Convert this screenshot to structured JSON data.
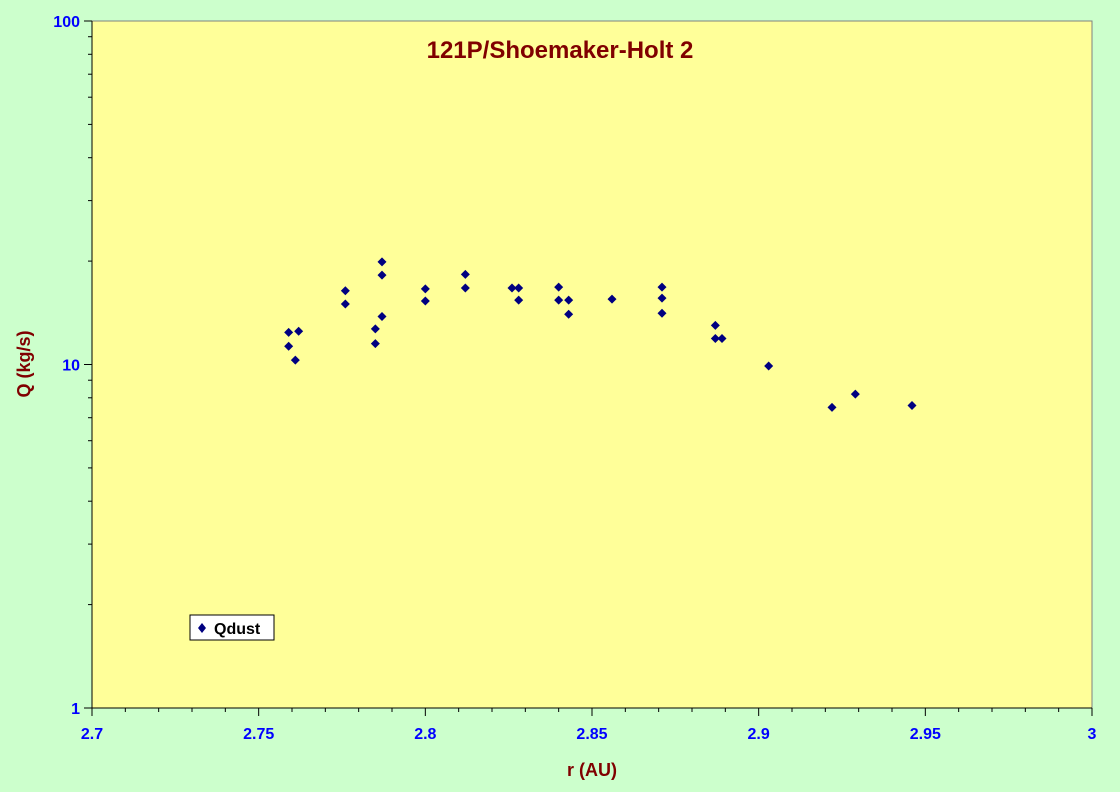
{
  "chart_data": {
    "type": "scatter",
    "title": "121P/Shoemaker-Holt 2",
    "xlabel": "r (AU)",
    "ylabel": "Q (kg/s)",
    "xlim": [
      2.7,
      3.0
    ],
    "ylim": [
      1,
      100
    ],
    "y_scale": "log",
    "x_ticks": [
      "2.7",
      "2.75",
      "2.8",
      "2.85",
      "2.9",
      "2.95",
      "3"
    ],
    "y_ticks": [
      "1",
      "10",
      "100"
    ],
    "grid": false,
    "legend_position": "bottom-left",
    "colors": {
      "background": "#ccffcc",
      "plot_area": "#ffff99",
      "marker": "#000080",
      "title": "#800000",
      "tick_labels": "#0000ff"
    },
    "series": [
      {
        "name": "Qdust",
        "marker": "diamond",
        "points": [
          {
            "x": 2.759,
            "y": 12.4
          },
          {
            "x": 2.759,
            "y": 11.3
          },
          {
            "x": 2.761,
            "y": 10.3
          },
          {
            "x": 2.762,
            "y": 12.5
          },
          {
            "x": 2.776,
            "y": 16.4
          },
          {
            "x": 2.776,
            "y": 15.0
          },
          {
            "x": 2.785,
            "y": 12.7
          },
          {
            "x": 2.785,
            "y": 11.5
          },
          {
            "x": 2.787,
            "y": 19.9
          },
          {
            "x": 2.787,
            "y": 18.2
          },
          {
            "x": 2.787,
            "y": 13.8
          },
          {
            "x": 2.8,
            "y": 16.6
          },
          {
            "x": 2.8,
            "y": 15.3
          },
          {
            "x": 2.812,
            "y": 18.3
          },
          {
            "x": 2.812,
            "y": 16.7
          },
          {
            "x": 2.826,
            "y": 16.7
          },
          {
            "x": 2.828,
            "y": 16.7
          },
          {
            "x": 2.828,
            "y": 15.4
          },
          {
            "x": 2.84,
            "y": 16.8
          },
          {
            "x": 2.84,
            "y": 15.4
          },
          {
            "x": 2.843,
            "y": 15.4
          },
          {
            "x": 2.843,
            "y": 14.0
          },
          {
            "x": 2.856,
            "y": 15.5
          },
          {
            "x": 2.871,
            "y": 16.8
          },
          {
            "x": 2.871,
            "y": 15.6
          },
          {
            "x": 2.871,
            "y": 14.1
          },
          {
            "x": 2.887,
            "y": 13.0
          },
          {
            "x": 2.887,
            "y": 11.9
          },
          {
            "x": 2.889,
            "y": 11.9
          },
          {
            "x": 2.903,
            "y": 9.9
          },
          {
            "x": 2.922,
            "y": 7.5
          },
          {
            "x": 2.929,
            "y": 8.2
          },
          {
            "x": 2.946,
            "y": 7.6
          }
        ]
      }
    ]
  }
}
